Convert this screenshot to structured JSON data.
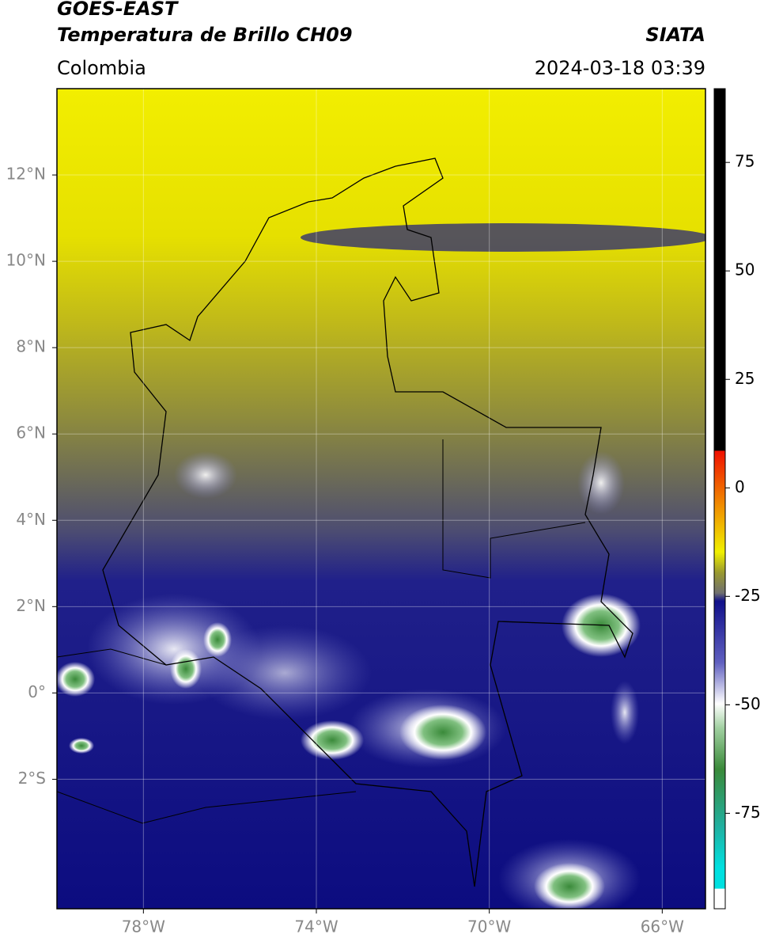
{
  "header": {
    "title": "GOES-EAST",
    "subtitle": "Temperatura de Brillo CH09",
    "source": "SIATA",
    "region": "Colombia",
    "datetime": "2024-03-18 03:39"
  },
  "map": {
    "xlim": [
      -80,
      -65
    ],
    "ylim": [
      -5,
      14
    ],
    "xticks": [
      {
        "value": -78,
        "label": "78°W"
      },
      {
        "value": -74,
        "label": "74°W"
      },
      {
        "value": -70,
        "label": "70°W"
      },
      {
        "value": -66,
        "label": "66°W"
      }
    ],
    "yticks": [
      {
        "value": 12,
        "label": "12°N"
      },
      {
        "value": 10,
        "label": "10°N"
      },
      {
        "value": 8,
        "label": "8°N"
      },
      {
        "value": 6,
        "label": "6°N"
      },
      {
        "value": 4,
        "label": "4°N"
      },
      {
        "value": 2,
        "label": "2°N"
      },
      {
        "value": 0,
        "label": "0°"
      },
      {
        "value": -2,
        "label": "2°S"
      }
    ],
    "grid": true
  },
  "colorbar": {
    "lim": [
      -97,
      92
    ],
    "ticks": [
      75,
      50,
      25,
      0,
      -25,
      -50,
      -75
    ]
  }
}
